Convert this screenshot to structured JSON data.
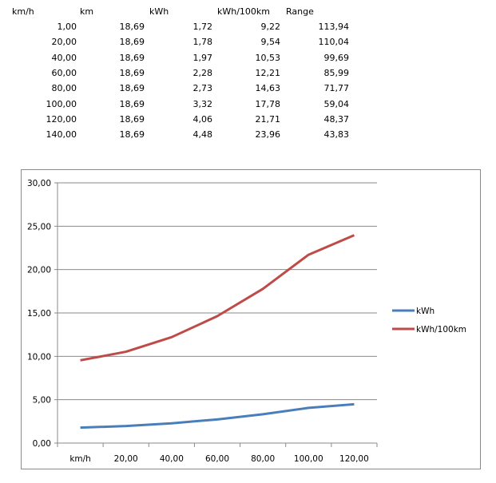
{
  "table": {
    "headers": [
      "km/h",
      "km",
      "kWh",
      "kWh/100km",
      "Range"
    ],
    "rows": [
      [
        "1,00",
        "18,69",
        "1,72",
        "9,22",
        "113,94"
      ],
      [
        "20,00",
        "18,69",
        "1,78",
        "9,54",
        "110,04"
      ],
      [
        "40,00",
        "18,69",
        "1,97",
        "10,53",
        "99,69"
      ],
      [
        "60,00",
        "18,69",
        "2,28",
        "12,21",
        "85,99"
      ],
      [
        "80,00",
        "18,69",
        "2,73",
        "14,63",
        "71,77"
      ],
      [
        "100,00",
        "18,69",
        "3,32",
        "17,78",
        "59,04"
      ],
      [
        "120,00",
        "18,69",
        "4,06",
        "21,71",
        "48,37"
      ],
      [
        "140,00",
        "18,69",
        "4,48",
        "23,96",
        "43,83"
      ]
    ]
  },
  "chart_data": {
    "type": "line",
    "title": "",
    "xlabel": "",
    "ylabel": "",
    "categories": [
      "km/h",
      "20,00",
      "40,00",
      "60,00",
      "80,00",
      "100,00",
      "120,00"
    ],
    "ylim": [
      0,
      30
    ],
    "yticks": [
      "0,00",
      "5,00",
      "10,00",
      "15,00",
      "20,00",
      "25,00",
      "30,00"
    ],
    "grid": true,
    "legend": "right",
    "series": [
      {
        "name": "kWh",
        "color": "#4a7ebb",
        "values": [
          1.78,
          1.97,
          2.28,
          2.73,
          3.32,
          4.06,
          4.48
        ]
      },
      {
        "name": "kWh/100km",
        "color": "#be4b48",
        "values": [
          9.54,
          10.53,
          12.21,
          14.63,
          17.78,
          21.71,
          23.96
        ]
      }
    ]
  }
}
